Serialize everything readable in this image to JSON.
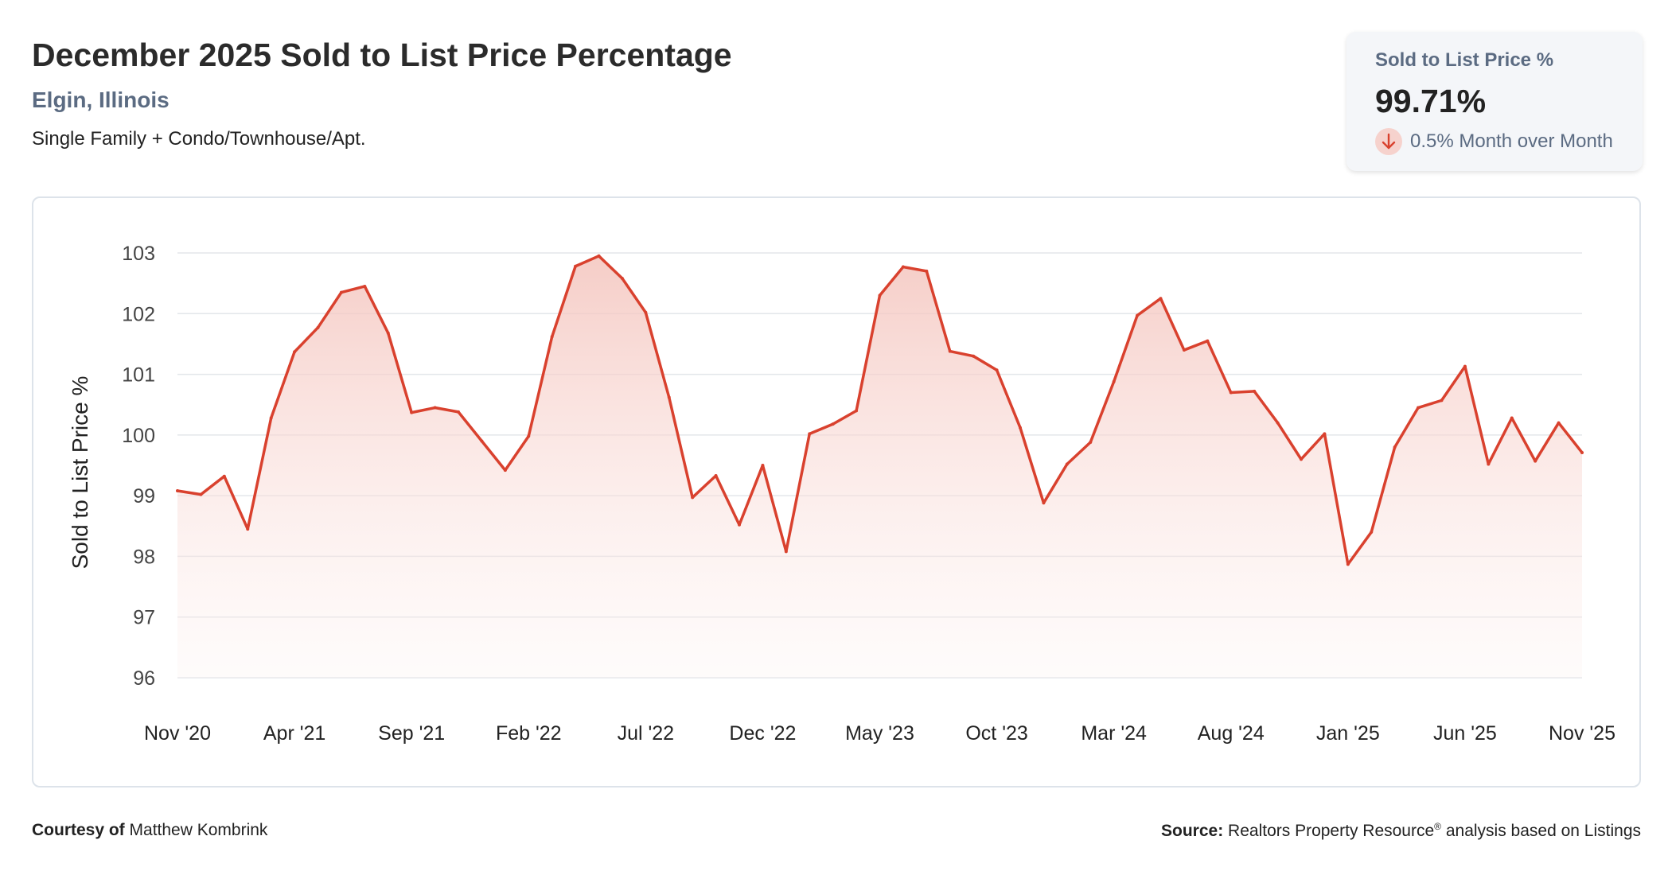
{
  "header": {
    "title": "December 2025 Sold to List Price Percentage",
    "location": "Elgin, Illinois",
    "property_type": "Single Family + Condo/Townhouse/Apt."
  },
  "kpi": {
    "label": "Sold to List Price %",
    "value": "99.71%",
    "change_text": "0.5% Month over Month",
    "direction": "down",
    "arrow_icon": "arrow-down-icon"
  },
  "footer": {
    "courtesy_label": "Courtesy of",
    "courtesy_name": "Matthew Kombrink",
    "source_label": "Source:",
    "source_name": "Realtors Property Resource",
    "source_mark": "®",
    "source_suffix": "analysis based on Listings"
  },
  "colors": {
    "line": "#d9412e",
    "fill_top": "#f4c4bd",
    "grid": "#e3e6ea",
    "title": "#2b2b2b",
    "accent_text": "#5b6b82"
  },
  "chart_data": {
    "type": "area",
    "ylabel": "Sold to List Price %",
    "ylim": [
      96,
      103
    ],
    "yticks": [
      96,
      97,
      98,
      99,
      100,
      101,
      102,
      103
    ],
    "grid": true,
    "x_tick_labels": [
      "Nov '20",
      "Apr '21",
      "Sep '21",
      "Feb '22",
      "Jul '22",
      "Dec '22",
      "May '23",
      "Oct '23",
      "Mar '24",
      "Aug '24",
      "Jan '25",
      "Jun '25",
      "Nov '25"
    ],
    "x": [
      "Nov '20",
      "Dec '20",
      "Jan '21",
      "Feb '21",
      "Mar '21",
      "Apr '21",
      "May '21",
      "Jun '21",
      "Jul '21",
      "Aug '21",
      "Sep '21",
      "Oct '21",
      "Nov '21",
      "Dec '21",
      "Jan '22",
      "Feb '22",
      "Mar '22",
      "Apr '22",
      "May '22",
      "Jun '22",
      "Jul '22",
      "Aug '22",
      "Sep '22",
      "Oct '22",
      "Nov '22",
      "Dec '22",
      "Jan '23",
      "Feb '23",
      "Mar '23",
      "Apr '23",
      "May '23",
      "Jun '23",
      "Jul '23",
      "Aug '23",
      "Sep '23",
      "Oct '23",
      "Nov '23",
      "Dec '23",
      "Jan '24",
      "Feb '24",
      "Mar '24",
      "Apr '24",
      "May '24",
      "Jun '24",
      "Jul '24",
      "Aug '24",
      "Sep '24",
      "Oct '24",
      "Nov '24",
      "Dec '24",
      "Jan '25",
      "Feb '25",
      "Mar '25",
      "Apr '25",
      "May '25",
      "Jun '25",
      "Jul '25",
      "Aug '25",
      "Sep '25",
      "Oct '25",
      "Nov '25"
    ],
    "series": [
      {
        "values": [
          99.08,
          99.02,
          99.32,
          98.45,
          100.28,
          101.37,
          101.77,
          102.35,
          102.45,
          101.68,
          100.37,
          100.45,
          100.38,
          99.9,
          99.42,
          99.98,
          101.62,
          102.78,
          102.95,
          102.58,
          102.02,
          100.62,
          98.97,
          99.33,
          98.52,
          99.5,
          98.08,
          100.02,
          100.18,
          100.4,
          102.3,
          102.77,
          102.7,
          101.38,
          101.3,
          101.07,
          100.12,
          98.88,
          99.52,
          99.88,
          100.88,
          101.97,
          102.25,
          101.4,
          101.55,
          100.7,
          100.72,
          100.2,
          99.6,
          100.02,
          97.87,
          98.4,
          99.8,
          100.45,
          100.57,
          101.13,
          99.52,
          100.28,
          99.57,
          100.2,
          99.71
        ]
      }
    ]
  }
}
